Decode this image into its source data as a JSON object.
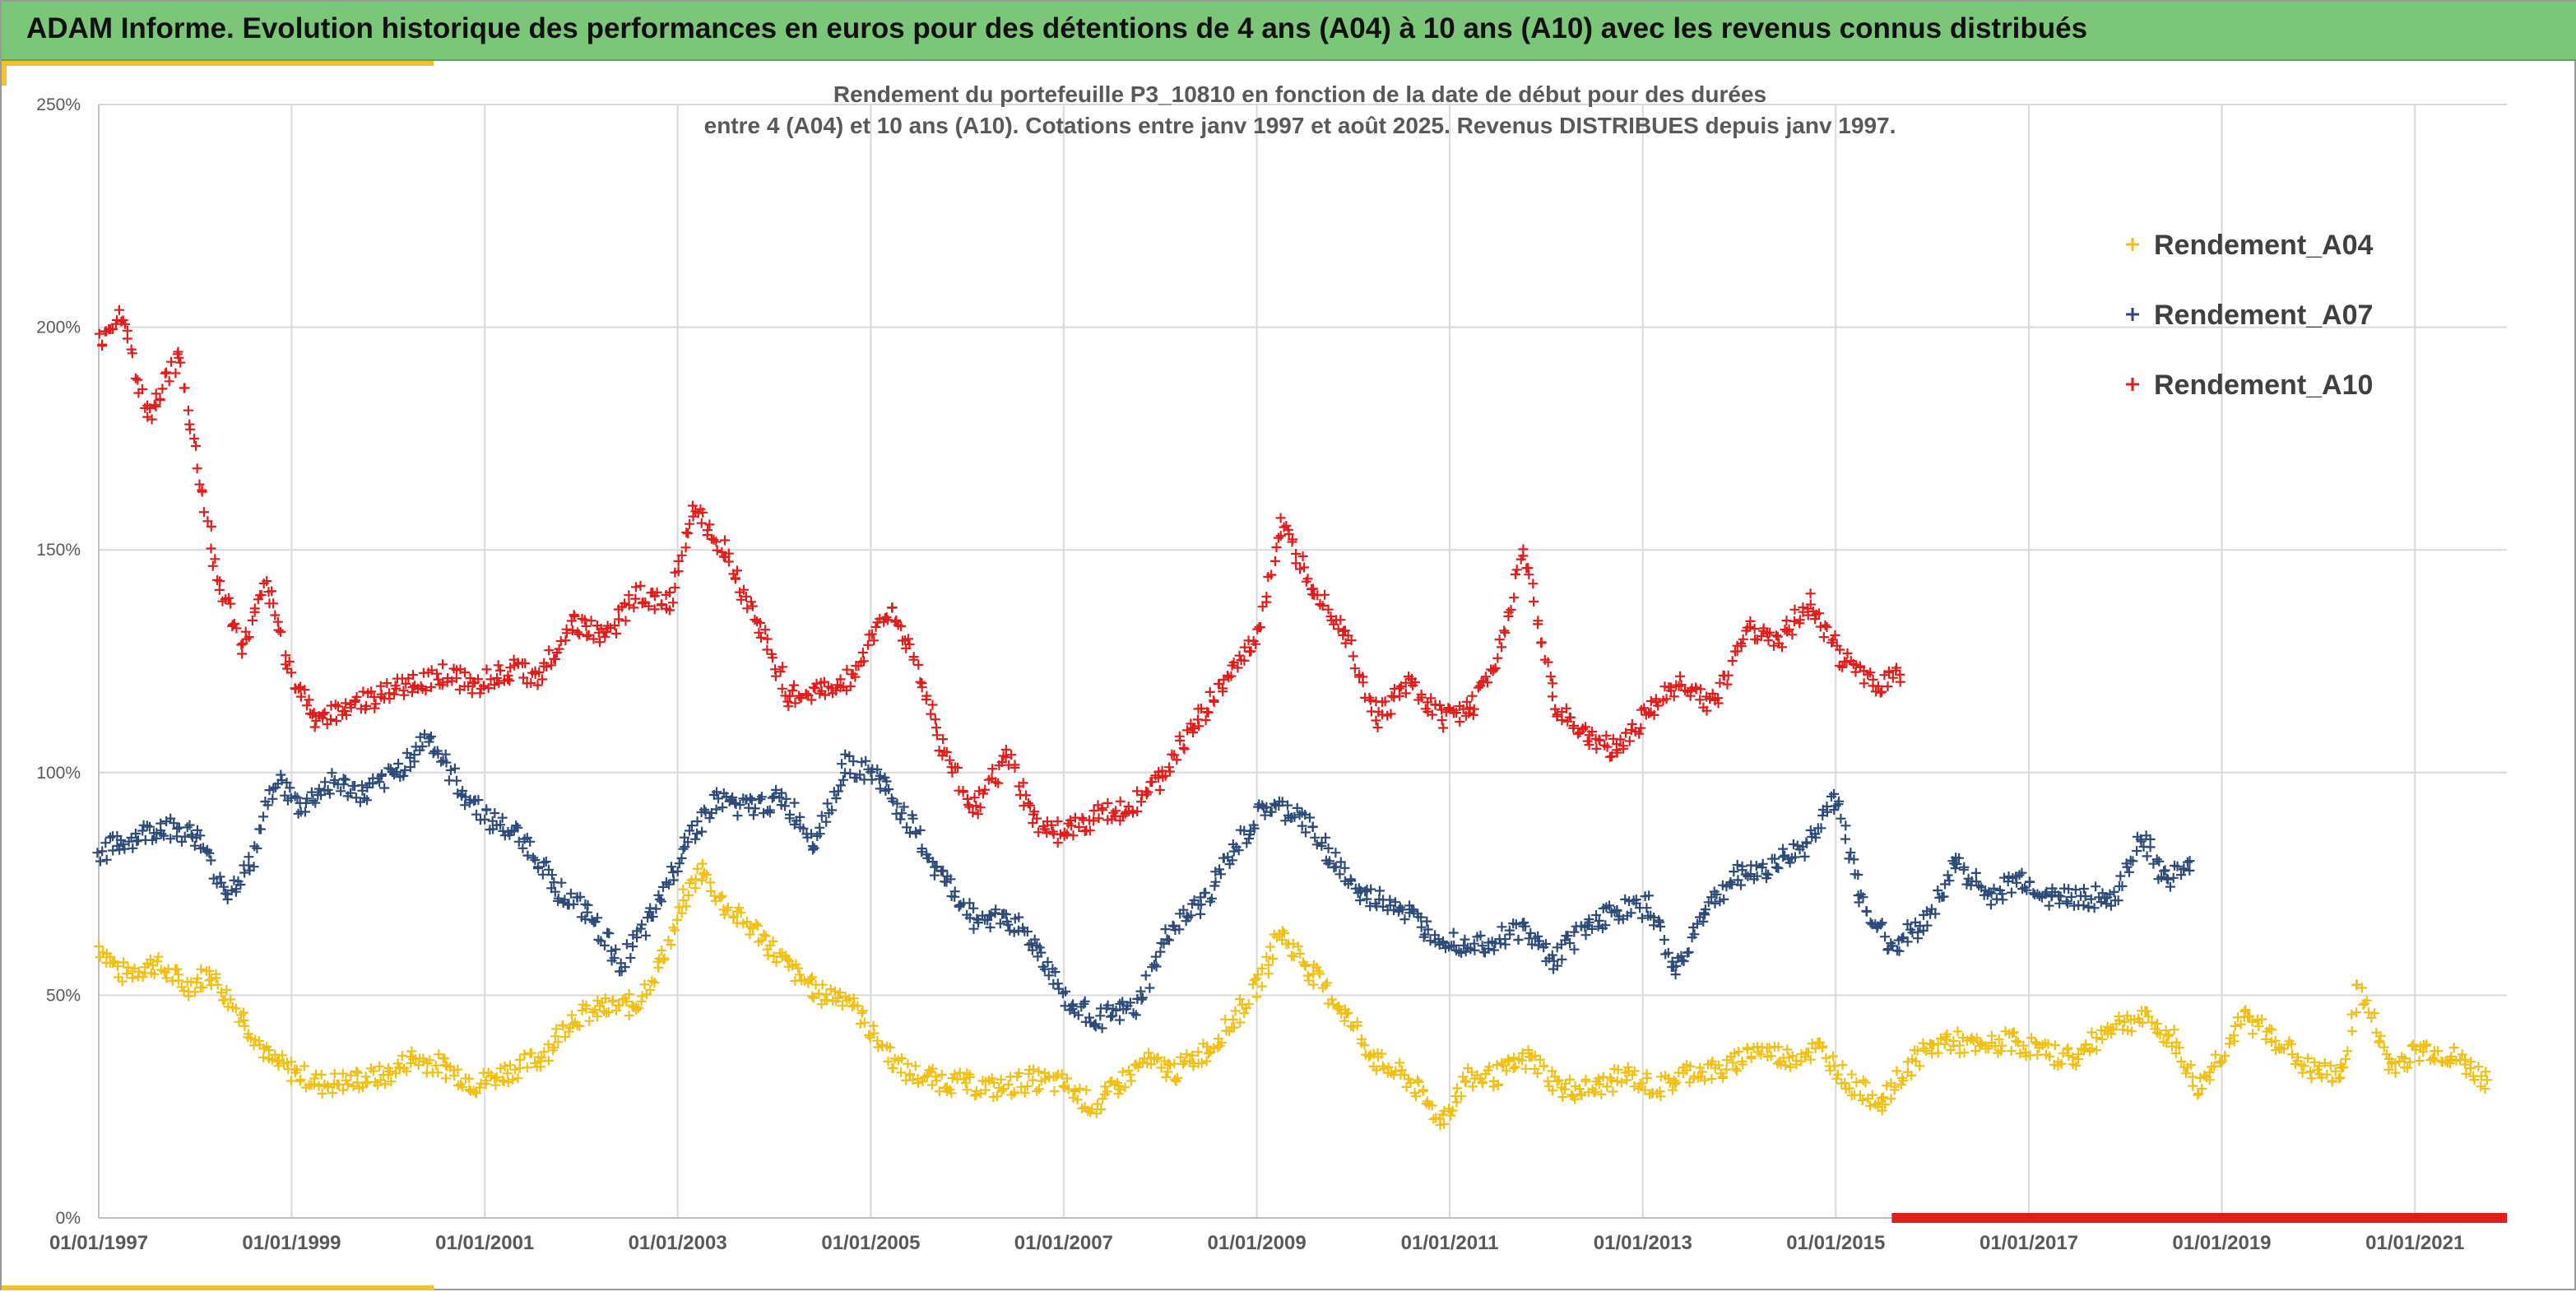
{
  "banner": {
    "title": "ADAM Informe. Evolution historique des performances en euros pour des détentions de 4 ans (A04) à 10 ans (A10) avec les revenus connus distribués"
  },
  "colors": {
    "banner": "#7cc67a",
    "accent_strip": "#f2c12e",
    "A04": "#f2c014",
    "A07": "#2e4a78",
    "A10": "#e21b1b",
    "grid": "#d9d9d9"
  },
  "chart_data": {
    "type": "scatter",
    "title": "Rendement du portefeuille P3_10810 en fonction de la date de début pour des durées",
    "subtitle": "entre 4 (A04) et 10 ans (A10). Cotations entre janv 1997 et août 2025. Revenus DISTRIBUES depuis janv 1997.",
    "xlabel": "",
    "ylabel": "",
    "x_range": [
      "1997-01-01",
      "2021-12-15"
    ],
    "ylim": [
      0,
      2.5
    ],
    "y_ticks": [
      {
        "value": 0,
        "label": "0%"
      },
      {
        "value": 0.5,
        "label": "50%"
      },
      {
        "value": 1.0,
        "label": "100%"
      },
      {
        "value": 1.5,
        "label": "150%"
      },
      {
        "value": 2.0,
        "label": "200%"
      },
      {
        "value": 2.5,
        "label": "250%"
      }
    ],
    "x_ticks": [
      {
        "value": "1997-01-01",
        "label": "01/01/1997"
      },
      {
        "value": "1999-01-01",
        "label": "01/01/1999"
      },
      {
        "value": "2001-01-01",
        "label": "01/01/2001"
      },
      {
        "value": "2003-01-01",
        "label": "01/01/2003"
      },
      {
        "value": "2005-01-01",
        "label": "01/01/2005"
      },
      {
        "value": "2007-01-01",
        "label": "01/01/2007"
      },
      {
        "value": "2009-01-01",
        "label": "01/01/2009"
      },
      {
        "value": "2011-01-01",
        "label": "01/01/2011"
      },
      {
        "value": "2013-01-01",
        "label": "01/01/2013"
      },
      {
        "value": "2015-01-01",
        "label": "01/01/2015"
      },
      {
        "value": "2017-01-01",
        "label": "01/01/2017"
      },
      {
        "value": "2019-01-01",
        "label": "01/01/2019"
      },
      {
        "value": "2021-01-01",
        "label": "01/01/2021"
      }
    ],
    "grid": true,
    "legend_position": "top-right",
    "marker": "+",
    "series": [
      {
        "name": "Rendement_A04",
        "color": "#f2c014",
        "points": [
          [
            "1997-01-01",
            0.61
          ],
          [
            "1997-04-01",
            0.55
          ],
          [
            "1997-08-01",
            0.57
          ],
          [
            "1997-12-01",
            0.52
          ],
          [
            "1998-03-01",
            0.55
          ],
          [
            "1998-07-01",
            0.45
          ],
          [
            "1998-10-01",
            0.36
          ],
          [
            "1999-01-01",
            0.33
          ],
          [
            "1999-05-01",
            0.3
          ],
          [
            "1999-09-01",
            0.31
          ],
          [
            "2000-01-01",
            0.32
          ],
          [
            "2000-04-01",
            0.36
          ],
          [
            "2000-08-01",
            0.34
          ],
          [
            "2000-12-01",
            0.3
          ],
          [
            "2001-04-01",
            0.33
          ],
          [
            "2001-08-01",
            0.36
          ],
          [
            "2001-12-01",
            0.45
          ],
          [
            "2002-04-01",
            0.47
          ],
          [
            "2002-08-01",
            0.48
          ],
          [
            "2002-11-01",
            0.58
          ],
          [
            "2003-02-01",
            0.72
          ],
          [
            "2003-04-01",
            0.78
          ],
          [
            "2003-07-01",
            0.7
          ],
          [
            "2003-11-01",
            0.64
          ],
          [
            "2004-03-01",
            0.56
          ],
          [
            "2004-07-01",
            0.5
          ],
          [
            "2004-10-01",
            0.5
          ],
          [
            "2005-01-01",
            0.42
          ],
          [
            "2005-05-01",
            0.33
          ],
          [
            "2005-09-01",
            0.31
          ],
          [
            "2006-01-01",
            0.3
          ],
          [
            "2006-05-01",
            0.29
          ],
          [
            "2006-09-01",
            0.31
          ],
          [
            "2007-01-01",
            0.3
          ],
          [
            "2007-05-01",
            0.25
          ],
          [
            "2007-08-01",
            0.3
          ],
          [
            "2007-11-01",
            0.35
          ],
          [
            "2008-03-01",
            0.33
          ],
          [
            "2008-07-01",
            0.38
          ],
          [
            "2008-10-01",
            0.44
          ],
          [
            "2009-01-01",
            0.52
          ],
          [
            "2009-04-01",
            0.64
          ],
          [
            "2009-08-01",
            0.55
          ],
          [
            "2009-12-01",
            0.46
          ],
          [
            "2010-04-01",
            0.35
          ],
          [
            "2010-08-01",
            0.31
          ],
          [
            "2010-12-01",
            0.22
          ],
          [
            "2011-03-01",
            0.31
          ],
          [
            "2011-07-01",
            0.32
          ],
          [
            "2011-11-01",
            0.36
          ],
          [
            "2012-03-01",
            0.29
          ],
          [
            "2012-07-01",
            0.29
          ],
          [
            "2012-11-01",
            0.32
          ],
          [
            "2013-03-01",
            0.29
          ],
          [
            "2013-07-01",
            0.33
          ],
          [
            "2013-11-01",
            0.33
          ],
          [
            "2014-03-01",
            0.38
          ],
          [
            "2014-07-01",
            0.36
          ],
          [
            "2014-11-01",
            0.38
          ],
          [
            "2015-03-01",
            0.3
          ],
          [
            "2015-07-01",
            0.26
          ],
          [
            "2015-11-01",
            0.36
          ],
          [
            "2016-03-01",
            0.4
          ],
          [
            "2016-07-01",
            0.38
          ],
          [
            "2016-11-01",
            0.4
          ],
          [
            "2017-03-01",
            0.37
          ],
          [
            "2017-07-01",
            0.36
          ],
          [
            "2017-11-01",
            0.43
          ],
          [
            "2018-03-01",
            0.45
          ],
          [
            "2018-07-01",
            0.4
          ],
          [
            "2018-10-01",
            0.29
          ],
          [
            "2019-01-01",
            0.37
          ],
          [
            "2019-04-01",
            0.45
          ],
          [
            "2019-08-01",
            0.4
          ],
          [
            "2019-12-01",
            0.33
          ],
          [
            "2020-04-01",
            0.32
          ],
          [
            "2020-06-01",
            0.52
          ],
          [
            "2020-10-01",
            0.34
          ],
          [
            "2021-02-01",
            0.38
          ],
          [
            "2021-06-01",
            0.36
          ],
          [
            "2021-10-01",
            0.31
          ]
        ]
      },
      {
        "name": "Rendement_A07",
        "color": "#2e4a78",
        "points": [
          [
            "1997-01-01",
            0.82
          ],
          [
            "1997-05-01",
            0.85
          ],
          [
            "1997-09-01",
            0.88
          ],
          [
            "1998-01-01",
            0.86
          ],
          [
            "1998-05-01",
            0.73
          ],
          [
            "1998-08-01",
            0.79
          ],
          [
            "1998-11-01",
            0.99
          ],
          [
            "1999-02-01",
            0.92
          ],
          [
            "1999-06-01",
            0.98
          ],
          [
            "1999-10-01",
            0.95
          ],
          [
            "2000-02-01",
            1.0
          ],
          [
            "2000-06-01",
            1.08
          ],
          [
            "2000-10-01",
            0.96
          ],
          [
            "2001-02-01",
            0.89
          ],
          [
            "2001-06-01",
            0.85
          ],
          [
            "2001-10-01",
            0.74
          ],
          [
            "2002-02-01",
            0.68
          ],
          [
            "2002-06-01",
            0.57
          ],
          [
            "2002-10-01",
            0.68
          ],
          [
            "2003-02-01",
            0.85
          ],
          [
            "2003-06-01",
            0.94
          ],
          [
            "2003-10-01",
            0.92
          ],
          [
            "2004-02-01",
            0.94
          ],
          [
            "2004-06-01",
            0.85
          ],
          [
            "2004-10-01",
            1.02
          ],
          [
            "2005-02-01",
            0.99
          ],
          [
            "2005-06-01",
            0.88
          ],
          [
            "2005-10-01",
            0.76
          ],
          [
            "2006-02-01",
            0.67
          ],
          [
            "2006-06-01",
            0.68
          ],
          [
            "2006-10-01",
            0.6
          ],
          [
            "2007-02-01",
            0.47
          ],
          [
            "2007-06-01",
            0.45
          ],
          [
            "2007-10-01",
            0.47
          ],
          [
            "2008-02-01",
            0.64
          ],
          [
            "2008-06-01",
            0.7
          ],
          [
            "2008-10-01",
            0.82
          ],
          [
            "2009-02-01",
            0.92
          ],
          [
            "2009-06-01",
            0.91
          ],
          [
            "2009-10-01",
            0.82
          ],
          [
            "2010-02-01",
            0.72
          ],
          [
            "2010-06-01",
            0.71
          ],
          [
            "2010-10-01",
            0.65
          ],
          [
            "2011-02-01",
            0.62
          ],
          [
            "2011-06-01",
            0.62
          ],
          [
            "2011-10-01",
            0.65
          ],
          [
            "2012-02-01",
            0.58
          ],
          [
            "2012-06-01",
            0.66
          ],
          [
            "2012-10-01",
            0.69
          ],
          [
            "2013-02-01",
            0.7
          ],
          [
            "2013-05-01",
            0.55
          ],
          [
            "2013-09-01",
            0.7
          ],
          [
            "2014-01-01",
            0.77
          ],
          [
            "2014-05-01",
            0.79
          ],
          [
            "2014-09-01",
            0.83
          ],
          [
            "2015-01-01",
            0.95
          ],
          [
            "2015-04-01",
            0.72
          ],
          [
            "2015-08-01",
            0.61
          ],
          [
            "2015-12-01",
            0.66
          ],
          [
            "2016-04-01",
            0.8
          ],
          [
            "2016-08-01",
            0.72
          ],
          [
            "2016-12-01",
            0.76
          ],
          [
            "2017-04-01",
            0.72
          ],
          [
            "2017-08-01",
            0.72
          ],
          [
            "2017-12-01",
            0.72
          ],
          [
            "2018-03-01",
            0.86
          ],
          [
            "2018-06-01",
            0.76
          ],
          [
            "2018-09-01",
            0.78
          ]
        ]
      },
      {
        "name": "Rendement_A10",
        "color": "#e21b1b",
        "points": [
          [
            "1997-01-01",
            1.97
          ],
          [
            "1997-04-01",
            2.03
          ],
          [
            "1997-07-01",
            1.8
          ],
          [
            "1997-11-01",
            1.93
          ],
          [
            "1998-02-01",
            1.62
          ],
          [
            "1998-04-01",
            1.42
          ],
          [
            "1998-07-01",
            1.28
          ],
          [
            "1998-10-01",
            1.42
          ],
          [
            "1999-01-01",
            1.22
          ],
          [
            "1999-04-01",
            1.12
          ],
          [
            "1999-08-01",
            1.15
          ],
          [
            "1999-12-01",
            1.17
          ],
          [
            "2000-04-01",
            1.2
          ],
          [
            "2000-08-01",
            1.22
          ],
          [
            "2000-12-01",
            1.2
          ],
          [
            "2001-04-01",
            1.23
          ],
          [
            "2001-08-01",
            1.22
          ],
          [
            "2001-12-01",
            1.34
          ],
          [
            "2002-04-01",
            1.3
          ],
          [
            "2002-08-01",
            1.4
          ],
          [
            "2002-12-01",
            1.38
          ],
          [
            "2003-03-01",
            1.6
          ],
          [
            "2003-07-01",
            1.5
          ],
          [
            "2003-11-01",
            1.33
          ],
          [
            "2004-03-01",
            1.17
          ],
          [
            "2004-07-01",
            1.18
          ],
          [
            "2004-11-01",
            1.22
          ],
          [
            "2005-03-01",
            1.37
          ],
          [
            "2005-06-01",
            1.28
          ],
          [
            "2005-10-01",
            1.05
          ],
          [
            "2006-02-01",
            0.92
          ],
          [
            "2006-06-01",
            1.04
          ],
          [
            "2006-09-01",
            0.9
          ],
          [
            "2007-01-01",
            0.86
          ],
          [
            "2007-05-01",
            0.9
          ],
          [
            "2007-09-01",
            0.92
          ],
          [
            "2008-01-01",
            0.98
          ],
          [
            "2008-05-01",
            1.1
          ],
          [
            "2008-09-01",
            1.2
          ],
          [
            "2009-01-01",
            1.3
          ],
          [
            "2009-04-01",
            1.55
          ],
          [
            "2009-08-01",
            1.42
          ],
          [
            "2009-12-01",
            1.32
          ],
          [
            "2010-04-01",
            1.12
          ],
          [
            "2010-08-01",
            1.2
          ],
          [
            "2010-12-01",
            1.12
          ],
          [
            "2011-04-01",
            1.15
          ],
          [
            "2011-08-01",
            1.3
          ],
          [
            "2011-10-01",
            1.52
          ],
          [
            "2012-02-01",
            1.15
          ],
          [
            "2012-06-01",
            1.08
          ],
          [
            "2012-10-01",
            1.05
          ],
          [
            "2013-02-01",
            1.15
          ],
          [
            "2013-06-01",
            1.2
          ],
          [
            "2013-10-01",
            1.15
          ],
          [
            "2014-02-01",
            1.33
          ],
          [
            "2014-06-01",
            1.3
          ],
          [
            "2014-10-01",
            1.38
          ],
          [
            "2015-02-01",
            1.25
          ],
          [
            "2015-06-01",
            1.2
          ],
          [
            "2015-09-01",
            1.22
          ]
        ]
      }
    ],
    "bottom_band": {
      "color": "#e21b1b",
      "value": 0,
      "from": "2015-08-01",
      "to": "2021-12-15"
    }
  }
}
